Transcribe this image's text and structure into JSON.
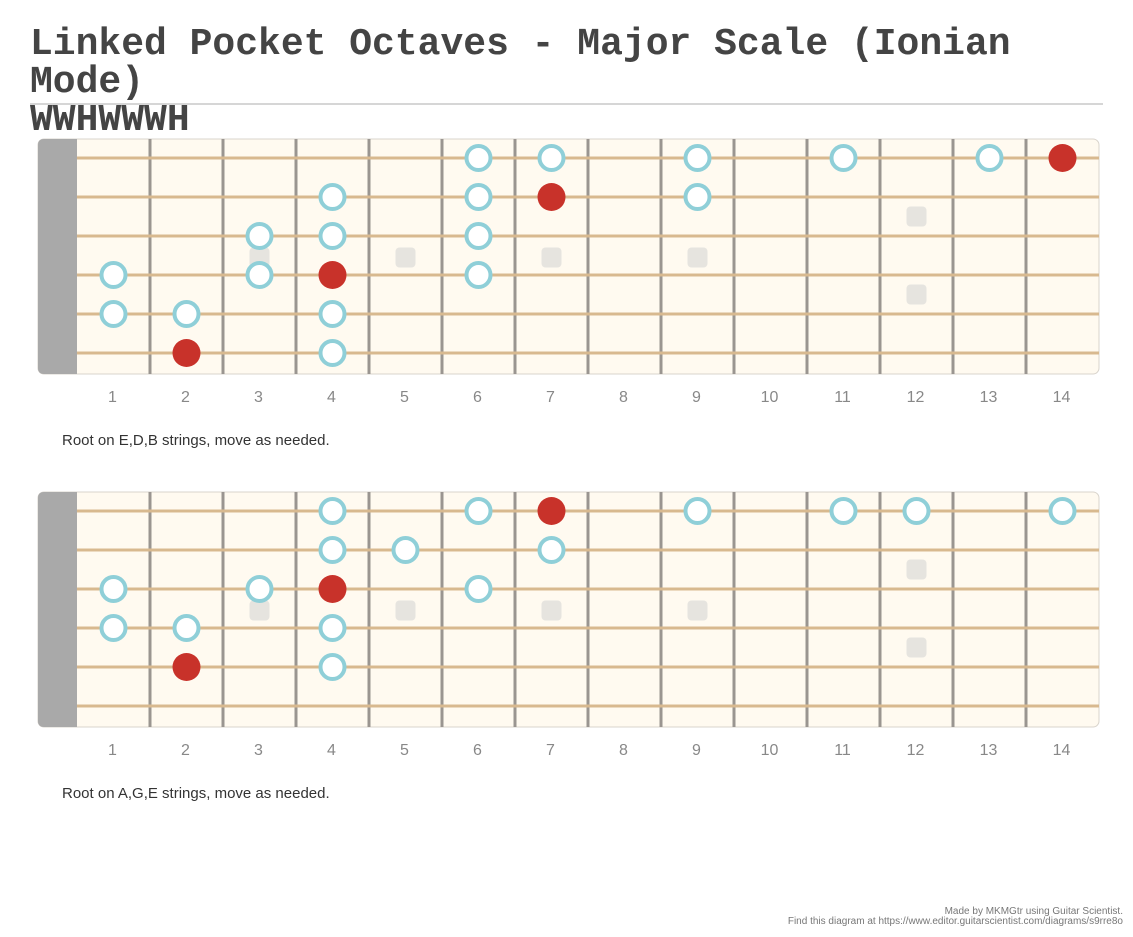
{
  "title": {
    "line1": "Linked Pocket Octaves - Major Scale (Ionian Mode)",
    "line2": "WWHWWWH"
  },
  "diagrams": [
    {
      "caption": "Root on E,D,B strings, move as needed.",
      "fret_numbers": [
        "1",
        "2",
        "3",
        "4",
        "5",
        "6",
        "7",
        "8",
        "9",
        "10",
        "11",
        "12",
        "13",
        "14"
      ],
      "notes": [
        {
          "string": 1,
          "fret": 6,
          "root": false
        },
        {
          "string": 1,
          "fret": 7,
          "root": false
        },
        {
          "string": 1,
          "fret": 9,
          "root": false
        },
        {
          "string": 1,
          "fret": 11,
          "root": false
        },
        {
          "string": 1,
          "fret": 13,
          "root": false
        },
        {
          "string": 1,
          "fret": 14,
          "root": true
        },
        {
          "string": 2,
          "fret": 4,
          "root": false
        },
        {
          "string": 2,
          "fret": 6,
          "root": false
        },
        {
          "string": 2,
          "fret": 7,
          "root": true
        },
        {
          "string": 2,
          "fret": 9,
          "root": false
        },
        {
          "string": 3,
          "fret": 3,
          "root": false
        },
        {
          "string": 3,
          "fret": 4,
          "root": false
        },
        {
          "string": 3,
          "fret": 6,
          "root": false
        },
        {
          "string": 4,
          "fret": 1,
          "root": false
        },
        {
          "string": 4,
          "fret": 3,
          "root": false
        },
        {
          "string": 4,
          "fret": 4,
          "root": true
        },
        {
          "string": 4,
          "fret": 6,
          "root": false
        },
        {
          "string": 5,
          "fret": 1,
          "root": false
        },
        {
          "string": 5,
          "fret": 2,
          "root": false
        },
        {
          "string": 5,
          "fret": 4,
          "root": false
        },
        {
          "string": 6,
          "fret": 2,
          "root": true
        },
        {
          "string": 6,
          "fret": 4,
          "root": false
        }
      ]
    },
    {
      "caption": "Root on A,G,E strings, move as needed.",
      "fret_numbers": [
        "1",
        "2",
        "3",
        "4",
        "5",
        "6",
        "7",
        "8",
        "9",
        "10",
        "11",
        "12",
        "13",
        "14"
      ],
      "notes": [
        {
          "string": 1,
          "fret": 4,
          "root": false
        },
        {
          "string": 1,
          "fret": 6,
          "root": false
        },
        {
          "string": 1,
          "fret": 7,
          "root": true
        },
        {
          "string": 1,
          "fret": 9,
          "root": false
        },
        {
          "string": 1,
          "fret": 11,
          "root": false
        },
        {
          "string": 1,
          "fret": 12,
          "root": false
        },
        {
          "string": 1,
          "fret": 14,
          "root": false
        },
        {
          "string": 2,
          "fret": 4,
          "root": false
        },
        {
          "string": 2,
          "fret": 5,
          "root": false
        },
        {
          "string": 2,
          "fret": 7,
          "root": false
        },
        {
          "string": 3,
          "fret": 1,
          "root": false
        },
        {
          "string": 3,
          "fret": 3,
          "root": false
        },
        {
          "string": 3,
          "fret": 4,
          "root": true
        },
        {
          "string": 3,
          "fret": 6,
          "root": false
        },
        {
          "string": 4,
          "fret": 1,
          "root": false
        },
        {
          "string": 4,
          "fret": 2,
          "root": false
        },
        {
          "string": 4,
          "fret": 4,
          "root": false
        },
        {
          "string": 5,
          "fret": 2,
          "root": true
        },
        {
          "string": 5,
          "fret": 4,
          "root": false
        }
      ]
    }
  ],
  "inlays": {
    "single": [
      3,
      5,
      7,
      9
    ],
    "double": [
      12
    ]
  },
  "colors": {
    "root": "#c8322a",
    "note": "#8fcfd8",
    "board": "#fffaf0",
    "nut": "#a9a9a9",
    "string": "#d8b98f",
    "fret": "#9a9590",
    "inlay": "#e6e4df"
  },
  "footer": {
    "line1": "Made by MKMGtr using Guitar Scientist.",
    "line2": "Find this diagram at https://www.editor.guitarscientist.com/diagrams/s9rre8o"
  }
}
